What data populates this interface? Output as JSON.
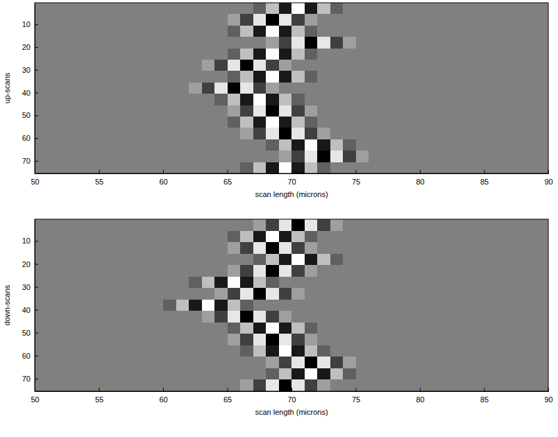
{
  "chart_data": [
    {
      "type": "heatmap",
      "x_label": "scan length (microns)",
      "y_label": "up-scans",
      "xlim": [
        50,
        90
      ],
      "ylim": [
        75.5,
        0.5
      ],
      "xticks": [
        50,
        55,
        60,
        65,
        70,
        75,
        80,
        85,
        90
      ],
      "yticks": [
        10,
        20,
        30,
        40,
        50,
        60,
        70
      ],
      "clim": [
        -1,
        1
      ],
      "x_edges": [
        50,
        51,
        52,
        53,
        54,
        55,
        56,
        57,
        58,
        59,
        60,
        61,
        62,
        63,
        64,
        65,
        66,
        67,
        68,
        69,
        70,
        71,
        72,
        73,
        74,
        75,
        76,
        77,
        78,
        79,
        80,
        81,
        82,
        83,
        84,
        85,
        86,
        87,
        88,
        89,
        90
      ],
      "y_edges": [
        0.5,
        5.5,
        10.5,
        15.5,
        20.5,
        25.5,
        30.5,
        35.5,
        40.5,
        45.5,
        50.5,
        55.5,
        60.5,
        65.5,
        70.5,
        75.5
      ],
      "cells": [
        [
          0,
          0,
          0,
          0,
          0,
          0,
          0,
          0,
          0,
          0,
          0,
          0,
          0,
          0,
          0,
          0,
          0,
          -0.25,
          0.5,
          -0.8,
          1,
          -0.8,
          0.5,
          -0.25,
          0,
          0,
          0,
          0,
          0,
          0,
          0,
          0,
          0,
          0,
          0,
          0,
          0,
          0,
          0,
          0
        ],
        [
          0,
          0,
          0,
          0,
          0,
          0,
          0,
          0,
          0,
          0,
          0,
          0,
          0,
          0,
          0,
          0.25,
          -0.5,
          0.8,
          -1,
          0.8,
          -0.5,
          0.25,
          0,
          0,
          0,
          0,
          0,
          0,
          0,
          0,
          0,
          0,
          0,
          0,
          0,
          0,
          0,
          0,
          0,
          0
        ],
        [
          0,
          0,
          0,
          0,
          0,
          0,
          0,
          0,
          0,
          0,
          0,
          0,
          0,
          0,
          0,
          -0.25,
          0.5,
          -0.8,
          1,
          -0.8,
          0.5,
          -0.25,
          0,
          0,
          0,
          0,
          0,
          0,
          0,
          0,
          0,
          0,
          0,
          0,
          0,
          0,
          0,
          0,
          0,
          0
        ],
        [
          0,
          0,
          0,
          0,
          0,
          0,
          0,
          0,
          0,
          0,
          0,
          0,
          0,
          0,
          0,
          0,
          0,
          0,
          0.25,
          -0.5,
          0.8,
          -1,
          0.8,
          -0.5,
          0.25,
          0,
          0,
          0,
          0,
          0,
          0,
          0,
          0,
          0,
          0,
          0,
          0,
          0,
          0,
          0
        ],
        [
          0,
          0,
          0,
          0,
          0,
          0,
          0,
          0,
          0,
          0,
          0,
          0,
          0,
          0,
          0,
          -0.25,
          0.5,
          -0.8,
          1,
          -0.8,
          0.5,
          -0.25,
          0,
          0,
          0,
          0,
          0,
          0,
          0,
          0,
          0,
          0,
          0,
          0,
          0,
          0,
          0,
          0,
          0,
          0
        ],
        [
          0,
          0,
          0,
          0,
          0,
          0,
          0,
          0,
          0,
          0,
          0,
          0,
          0,
          0.25,
          -0.5,
          0.8,
          -1,
          0.8,
          -0.5,
          0.25,
          0,
          0,
          0,
          0,
          0,
          0,
          0,
          0,
          0,
          0,
          0,
          0,
          0,
          0,
          0,
          0,
          0,
          0,
          0,
          0
        ],
        [
          0,
          0,
          0,
          0,
          0,
          0,
          0,
          0,
          0,
          0,
          0,
          0,
          0,
          0,
          0,
          -0.25,
          0.5,
          -0.8,
          1,
          -0.8,
          0.5,
          -0.25,
          0,
          0,
          0,
          0,
          0,
          0,
          0,
          0,
          0,
          0,
          0,
          0,
          0,
          0,
          0,
          0,
          0,
          0
        ],
        [
          0,
          0,
          0,
          0,
          0,
          0,
          0,
          0,
          0,
          0,
          0,
          0,
          0.25,
          -0.5,
          0.8,
          -1,
          0.8,
          -0.5,
          0.25,
          0,
          0,
          0,
          0,
          0,
          0,
          0,
          0,
          0,
          0,
          0,
          0,
          0,
          0,
          0,
          0,
          0,
          0,
          0,
          0,
          0
        ],
        [
          0,
          0,
          0,
          0,
          0,
          0,
          0,
          0,
          0,
          0,
          0,
          0,
          0,
          0,
          -0.25,
          0.5,
          -0.8,
          1,
          -0.8,
          0.5,
          -0.25,
          0,
          0,
          0,
          0,
          0,
          0,
          0,
          0,
          0,
          0,
          0,
          0,
          0,
          0,
          0,
          0,
          0,
          0,
          0
        ],
        [
          0,
          0,
          0,
          0,
          0,
          0,
          0,
          0,
          0,
          0,
          0,
          0,
          0,
          0,
          0,
          0.25,
          -0.5,
          0.8,
          -1,
          0.8,
          -0.5,
          0.25,
          0,
          0,
          0,
          0,
          0,
          0,
          0,
          0,
          0,
          0,
          0,
          0,
          0,
          0,
          0,
          0,
          0,
          0
        ],
        [
          0,
          0,
          0,
          0,
          0,
          0,
          0,
          0,
          0,
          0,
          0,
          0,
          0,
          0,
          0,
          -0.25,
          0.5,
          -0.8,
          1,
          -0.8,
          0.5,
          -0.25,
          0,
          0,
          0,
          0,
          0,
          0,
          0,
          0,
          0,
          0,
          0,
          0,
          0,
          0,
          0,
          0,
          0,
          0
        ],
        [
          0,
          0,
          0,
          0,
          0,
          0,
          0,
          0,
          0,
          0,
          0,
          0,
          0,
          0,
          0,
          0,
          0.25,
          -0.5,
          0.8,
          -1,
          0.8,
          -0.5,
          0.25,
          0,
          0,
          0,
          0,
          0,
          0,
          0,
          0,
          0,
          0,
          0,
          0,
          0,
          0,
          0,
          0,
          0
        ],
        [
          0,
          0,
          0,
          0,
          0,
          0,
          0,
          0,
          0,
          0,
          0,
          0,
          0,
          0,
          0,
          0,
          0,
          0,
          -0.25,
          0.5,
          -0.8,
          1,
          -0.8,
          0.5,
          -0.25,
          0,
          0,
          0,
          0,
          0,
          0,
          0,
          0,
          0,
          0,
          0,
          0,
          0,
          0,
          0
        ],
        [
          0,
          0,
          0,
          0,
          0,
          0,
          0,
          0,
          0,
          0,
          0,
          0,
          0,
          0,
          0,
          0,
          0,
          0,
          0,
          0.25,
          -0.5,
          0.8,
          -1,
          0.8,
          -0.5,
          0.25,
          0,
          0,
          0,
          0,
          0,
          0,
          0,
          0,
          0,
          0,
          0,
          0,
          0,
          0
        ],
        [
          0,
          0,
          0,
          0,
          0,
          0,
          0,
          0,
          0,
          0,
          0,
          0,
          0,
          0,
          0,
          0,
          -0.25,
          0.5,
          -0.8,
          1,
          -0.8,
          0.5,
          -0.25,
          0,
          0,
          0,
          0,
          0,
          0,
          0,
          0,
          0,
          0,
          0,
          0,
          0,
          0,
          0,
          0,
          0
        ]
      ]
    },
    {
      "type": "heatmap",
      "x_label": "scan length (microns)",
      "y_label": "down-scans",
      "xlim": [
        50,
        90
      ],
      "ylim": [
        75.5,
        0.5
      ],
      "xticks": [
        50,
        55,
        60,
        65,
        70,
        75,
        80,
        85,
        90
      ],
      "yticks": [
        10,
        20,
        30,
        40,
        50,
        60,
        70
      ],
      "clim": [
        -1,
        1
      ],
      "x_edges": [
        50,
        51,
        52,
        53,
        54,
        55,
        56,
        57,
        58,
        59,
        60,
        61,
        62,
        63,
        64,
        65,
        66,
        67,
        68,
        69,
        70,
        71,
        72,
        73,
        74,
        75,
        76,
        77,
        78,
        79,
        80,
        81,
        82,
        83,
        84,
        85,
        86,
        87,
        88,
        89,
        90
      ],
      "y_edges": [
        0.5,
        5.5,
        10.5,
        15.5,
        20.5,
        25.5,
        30.5,
        35.5,
        40.5,
        45.5,
        50.5,
        55.5,
        60.5,
        65.5,
        70.5,
        75.5
      ],
      "cells": [
        [
          0,
          0,
          0,
          0,
          0,
          0,
          0,
          0,
          0,
          0,
          0,
          0,
          0,
          0,
          0,
          0,
          0,
          0.25,
          -0.5,
          0.8,
          -1,
          0.8,
          -0.5,
          0.25,
          0,
          0,
          0,
          0,
          0,
          0,
          0,
          0,
          0,
          0,
          0,
          0,
          0,
          0,
          0,
          0
        ],
        [
          0,
          0,
          0,
          0,
          0,
          0,
          0,
          0,
          0,
          0,
          0,
          0,
          0,
          0,
          0,
          -0.25,
          0.5,
          -0.8,
          1,
          -0.8,
          0.5,
          -0.25,
          0,
          0,
          0,
          0,
          0,
          0,
          0,
          0,
          0,
          0,
          0,
          0,
          0,
          0,
          0,
          0,
          0,
          0
        ],
        [
          0,
          0,
          0,
          0,
          0,
          0,
          0,
          0,
          0,
          0,
          0,
          0,
          0,
          0,
          0,
          0.25,
          -0.5,
          0.8,
          -1,
          0.8,
          -0.5,
          0.25,
          0,
          0,
          0,
          0,
          0,
          0,
          0,
          0,
          0,
          0,
          0,
          0,
          0,
          0,
          0,
          0,
          0,
          0
        ],
        [
          0,
          0,
          0,
          0,
          0,
          0,
          0,
          0,
          0,
          0,
          0,
          0,
          0,
          0,
          0,
          0,
          0,
          -0.25,
          0.5,
          -0.8,
          1,
          -0.8,
          0.5,
          -0.25,
          0,
          0,
          0,
          0,
          0,
          0,
          0,
          0,
          0,
          0,
          0,
          0,
          0,
          0,
          0,
          0
        ],
        [
          0,
          0,
          0,
          0,
          0,
          0,
          0,
          0,
          0,
          0,
          0,
          0,
          0,
          0,
          0,
          0.25,
          -0.5,
          0.8,
          -1,
          0.8,
          -0.5,
          0.25,
          0,
          0,
          0,
          0,
          0,
          0,
          0,
          0,
          0,
          0,
          0,
          0,
          0,
          0,
          0,
          0,
          0,
          0
        ],
        [
          0,
          0,
          0,
          0,
          0,
          0,
          0,
          0,
          0,
          0,
          0,
          0,
          -0.25,
          0.5,
          -0.8,
          1,
          -0.8,
          0.5,
          -0.25,
          0,
          0,
          0,
          0,
          0,
          0,
          0,
          0,
          0,
          0,
          0,
          0,
          0,
          0,
          0,
          0,
          0,
          0,
          0,
          0,
          0
        ],
        [
          0,
          0,
          0,
          0,
          0,
          0,
          0,
          0,
          0,
          0,
          0,
          0,
          0,
          0,
          0.25,
          -0.5,
          0.8,
          -1,
          0.8,
          -0.5,
          0.25,
          0,
          0,
          0,
          0,
          0,
          0,
          0,
          0,
          0,
          0,
          0,
          0,
          0,
          0,
          0,
          0,
          0,
          0,
          0
        ],
        [
          0,
          0,
          0,
          0,
          0,
          0,
          0,
          0,
          0,
          0,
          -0.25,
          0.5,
          -0.8,
          1,
          -0.8,
          0.5,
          -0.25,
          0,
          0,
          0,
          0,
          0,
          0,
          0,
          0,
          0,
          0,
          0,
          0,
          0,
          0,
          0,
          0,
          0,
          0,
          0,
          0,
          0,
          0,
          0
        ],
        [
          0,
          0,
          0,
          0,
          0,
          0,
          0,
          0,
          0,
          0,
          0,
          0,
          0,
          0.25,
          -0.5,
          0.8,
          -1,
          0.8,
          -0.5,
          0.25,
          0,
          0,
          0,
          0,
          0,
          0,
          0,
          0,
          0,
          0,
          0,
          0,
          0,
          0,
          0,
          0,
          0,
          0,
          0,
          0
        ],
        [
          0,
          0,
          0,
          0,
          0,
          0,
          0,
          0,
          0,
          0,
          0,
          0,
          0,
          0,
          0,
          -0.25,
          0.5,
          -0.8,
          1,
          -0.8,
          0.5,
          -0.25,
          0,
          0,
          0,
          0,
          0,
          0,
          0,
          0,
          0,
          0,
          0,
          0,
          0,
          0,
          0,
          0,
          0,
          0
        ],
        [
          0,
          0,
          0,
          0,
          0,
          0,
          0,
          0,
          0,
          0,
          0,
          0,
          0,
          0,
          0,
          0.25,
          -0.5,
          0.8,
          -1,
          0.8,
          -0.5,
          0.25,
          0,
          0,
          0,
          0,
          0,
          0,
          0,
          0,
          0,
          0,
          0,
          0,
          0,
          0,
          0,
          0,
          0,
          0
        ],
        [
          0,
          0,
          0,
          0,
          0,
          0,
          0,
          0,
          0,
          0,
          0,
          0,
          0,
          0,
          0,
          0,
          -0.25,
          0.5,
          -0.8,
          1,
          -0.8,
          0.5,
          -0.25,
          0,
          0,
          0,
          0,
          0,
          0,
          0,
          0,
          0,
          0,
          0,
          0,
          0,
          0,
          0,
          0,
          0
        ],
        [
          0,
          0,
          0,
          0,
          0,
          0,
          0,
          0,
          0,
          0,
          0,
          0,
          0,
          0,
          0,
          0,
          0,
          0,
          0.25,
          -0.5,
          0.8,
          -1,
          0.8,
          -0.5,
          0.25,
          0,
          0,
          0,
          0,
          0,
          0,
          0,
          0,
          0,
          0,
          0,
          0,
          0,
          0,
          0
        ],
        [
          0,
          0,
          0,
          0,
          0,
          0,
          0,
          0,
          0,
          0,
          0,
          0,
          0,
          0,
          0,
          0,
          0,
          0,
          -0.25,
          0.5,
          -0.8,
          1,
          -0.8,
          0.5,
          -0.25,
          0,
          0,
          0,
          0,
          0,
          0,
          0,
          0,
          0,
          0,
          0,
          0,
          0,
          0,
          0
        ],
        [
          0,
          0,
          0,
          0,
          0,
          0,
          0,
          0,
          0,
          0,
          0,
          0,
          0,
          0,
          0,
          0,
          0.25,
          -0.5,
          0.8,
          -1,
          0.8,
          -0.5,
          0.25,
          0,
          0,
          0,
          0,
          0,
          0,
          0,
          0,
          0,
          0,
          0,
          0,
          0,
          0,
          0,
          0,
          0
        ]
      ]
    }
  ]
}
